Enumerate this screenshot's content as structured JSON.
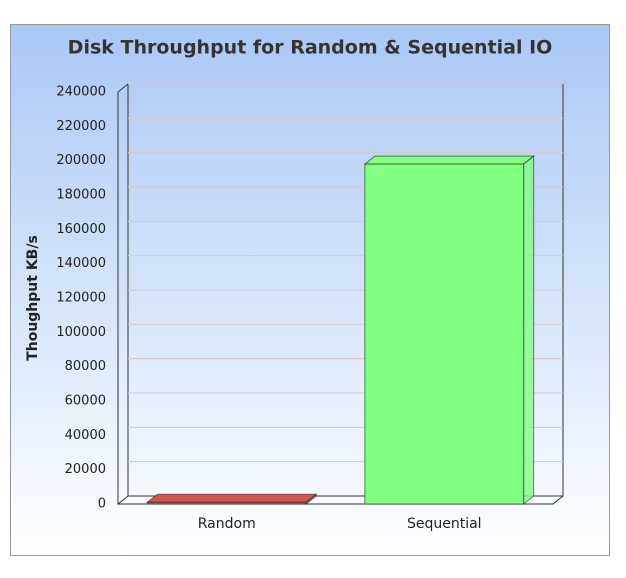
{
  "chart_data": {
    "type": "bar3d",
    "title": "Disk Throughput for Random & Sequential IO",
    "y_label": "Thoughput KB/s",
    "categories": [
      "Random",
      "Sequential"
    ],
    "values": [
      1000,
      198000
    ],
    "colors": [
      "#d9534f",
      "#80ff80"
    ],
    "ylim": [
      0,
      240000
    ],
    "yticks": [
      0,
      20000,
      40000,
      60000,
      80000,
      100000,
      120000,
      140000,
      160000,
      180000,
      200000,
      220000,
      240000
    ],
    "grid": true
  }
}
